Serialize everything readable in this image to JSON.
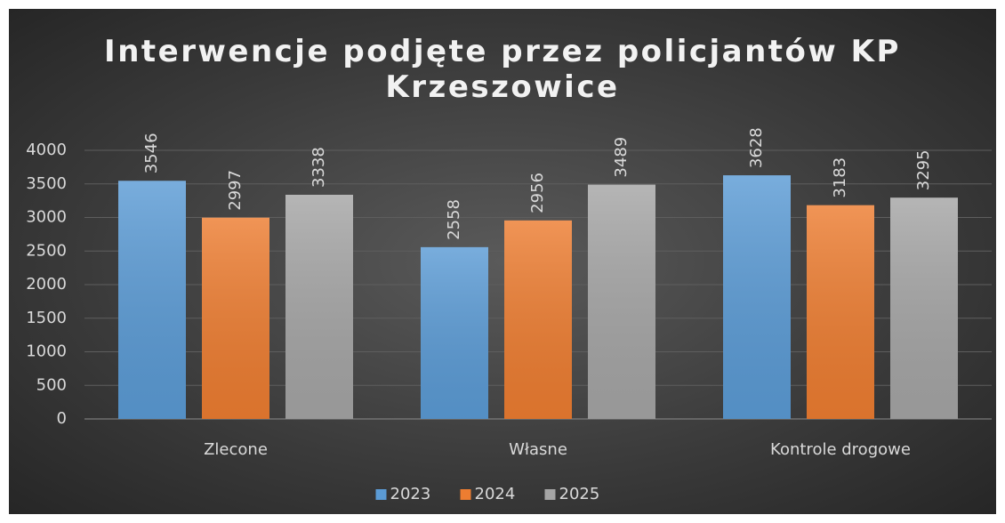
{
  "chart_data": {
    "type": "bar",
    "title": "Interwencje podjęte przez policjantów KP Krzeszowice",
    "categories": [
      "Zlecone",
      "Własne",
      "Kontrole drogowe"
    ],
    "series": [
      {
        "name": "2023",
        "color": "#5b9bd5",
        "values": [
          3546,
          2558,
          3628
        ]
      },
      {
        "name": "2024",
        "color": "#ed7d31",
        "values": [
          2997,
          2956,
          3183
        ]
      },
      {
        "name": "2025",
        "color": "#a5a5a5",
        "values": [
          3338,
          3489,
          3295
        ]
      }
    ],
    "ylim": [
      0,
      4000
    ],
    "yticks": [
      0,
      500,
      1000,
      1500,
      2000,
      2500,
      3000,
      3500,
      4000
    ],
    "grid": true,
    "legend": "bottom"
  }
}
